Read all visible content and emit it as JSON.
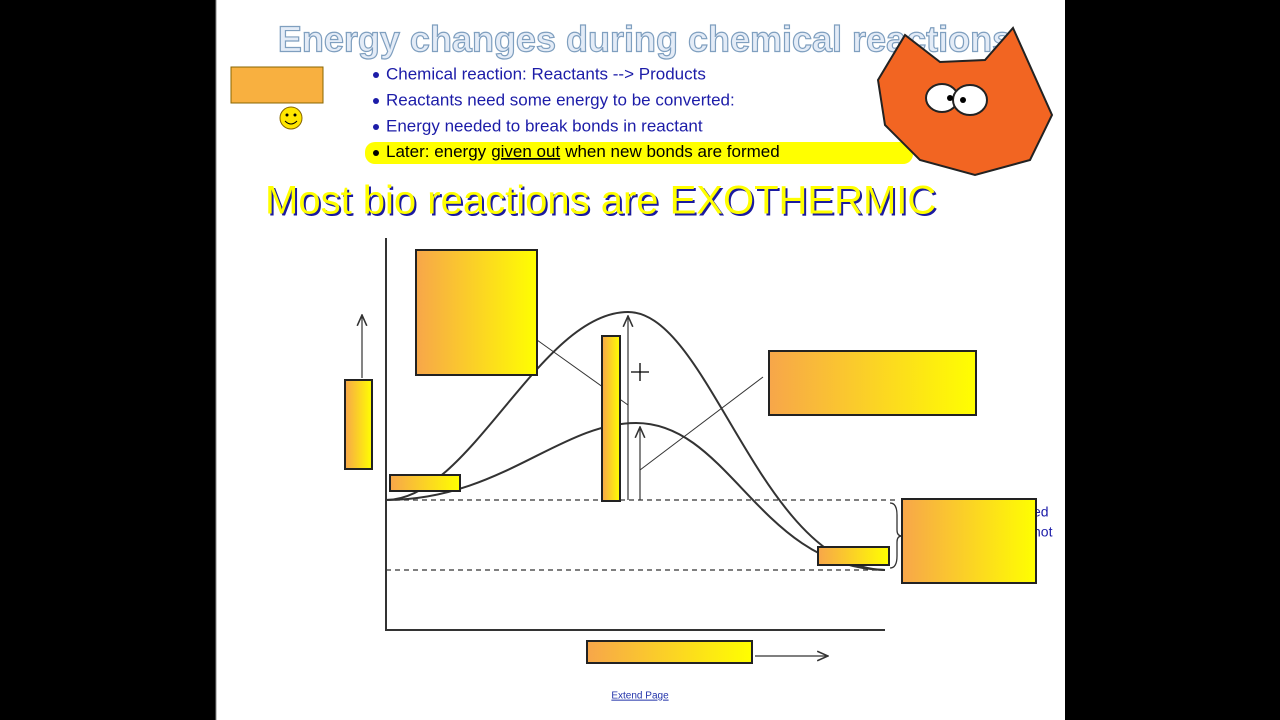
{
  "header": {
    "title": "Energy changes during chemical reactions"
  },
  "bullets": [
    "Chemical reaction: Reactants --> Products",
    "Reactants need some energy to be converted:",
    "Energy needed to break bonds in reactant"
  ],
  "highlighted_bullet": [
    "Later: energy",
    "given out",
    "when new bonds are formed"
  ],
  "heading": "Most bio reactions are EXOTHERMIC",
  "cut_off_text": [
    "ed",
    "hot"
  ],
  "footer_link": "Extend Page"
}
